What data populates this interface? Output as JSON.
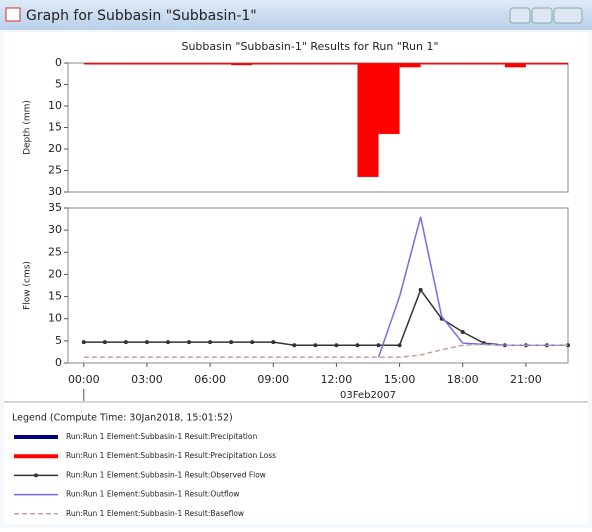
{
  "window": {
    "title": "Graph for Subbasin \"Subbasin-1\""
  },
  "header": {
    "title": "Subbasin \"Subbasin-1\" Results for Run \"Run 1\""
  },
  "chart_data": [
    {
      "type": "bar",
      "ylabel": "Depth (mm)",
      "ylim": [
        30,
        0
      ],
      "yticks": [
        0,
        5,
        10,
        15,
        20,
        25,
        30
      ],
      "xlim": [
        -0.75,
        23
      ],
      "x": [
        0,
        1,
        2,
        3,
        4,
        5,
        6,
        7,
        8,
        9,
        10,
        11,
        12,
        13,
        14,
        15,
        16,
        17,
        18,
        19,
        20,
        21,
        22
      ],
      "series": [
        {
          "color": "#ff0000",
          "values": [
            0,
            0,
            0,
            0,
            0,
            0,
            0,
            0.5,
            0,
            0,
            0,
            0,
            0,
            26.5,
            16.5,
            1,
            0,
            0,
            0,
            0,
            1,
            0,
            0
          ]
        }
      ]
    },
    {
      "type": "line",
      "ylabel": "Flow (cms)",
      "ylim": [
        0,
        35
      ],
      "yticks": [
        0,
        5,
        10,
        15,
        20,
        25,
        30,
        35
      ],
      "xlim": [
        -0.75,
        23
      ],
      "xlabel": "03Feb2007",
      "xticks": [
        {
          "value": 0,
          "label": "00:00"
        },
        {
          "value": 3,
          "label": "03:00"
        },
        {
          "value": 6,
          "label": "06:00"
        },
        {
          "value": 9,
          "label": "09:00"
        },
        {
          "value": 12,
          "label": "12:00"
        },
        {
          "value": 15,
          "label": "15:00"
        },
        {
          "value": 18,
          "label": "18:00"
        },
        {
          "value": 21,
          "label": "21:00"
        }
      ],
      "x": [
        0,
        1,
        2,
        3,
        4,
        5,
        6,
        7,
        8,
        9,
        10,
        11,
        12,
        13,
        14,
        15,
        16,
        17,
        18,
        19,
        20,
        21,
        22,
        23
      ],
      "series": [
        {
          "color": "#333333",
          "markers": true,
          "values": [
            4.7,
            4.7,
            4.7,
            4.7,
            4.7,
            4.7,
            4.7,
            4.7,
            4.7,
            4.7,
            4,
            4,
            4,
            4,
            4,
            4,
            16.5,
            10,
            7,
            4.5,
            4,
            4,
            4,
            4
          ]
        },
        {
          "color": "#7b68ee",
          "values": [
            null,
            null,
            null,
            null,
            null,
            null,
            null,
            null,
            null,
            null,
            null,
            null,
            null,
            null,
            1.3,
            15,
            33,
            10.5,
            4.5,
            4.2,
            4,
            4,
            4,
            4
          ]
        },
        {
          "color": "#c8a0a0",
          "dashed": true,
          "values": [
            1.3,
            1.3,
            1.3,
            1.3,
            1.3,
            1.3,
            1.3,
            1.3,
            1.3,
            1.3,
            1.3,
            1.3,
            1.3,
            1.3,
            1.3,
            1.3,
            1.8,
            3,
            4,
            4.2,
            4,
            4,
            4,
            4
          ]
        }
      ]
    }
  ],
  "legend": {
    "title": "Legend (Compute Time: 30Jan2018, 15:01:52)",
    "items": [
      {
        "label": "Run:Run 1 Element:Subbasin-1 Result:Precipitation",
        "color": "#000080"
      },
      {
        "label": "Run:Run 1 Element:Subbasin-1 Result:Precipitation Loss",
        "color": "#ff0000"
      },
      {
        "label": "Run:Run 1 Element:Subbasin-1 Result:Observed Flow",
        "color": "#333333",
        "markers": true
      },
      {
        "label": "Run:Run 1 Element:Subbasin-1 Result:Outflow",
        "color": "#7b68ee"
      },
      {
        "label": "Run:Run 1 Element:Subbasin-1 Result:Baseflow",
        "color": "#c8a0a0",
        "dashed": true
      }
    ]
  }
}
